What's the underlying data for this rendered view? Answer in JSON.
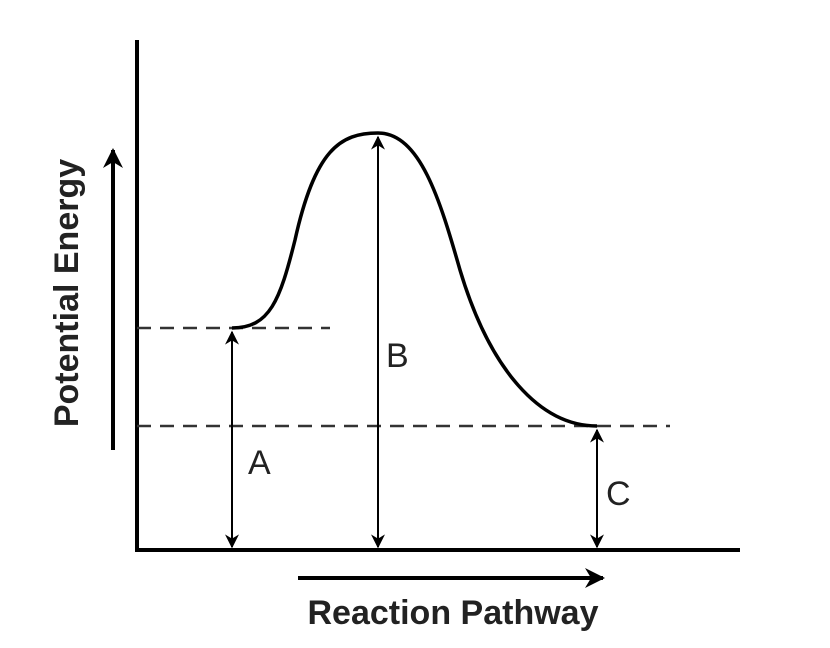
{
  "axes": {
    "y_label": "Potential Energy",
    "x_label": "Reaction Pathway"
  },
  "arrows": {
    "a": "A",
    "b": "B",
    "c": "C"
  }
}
